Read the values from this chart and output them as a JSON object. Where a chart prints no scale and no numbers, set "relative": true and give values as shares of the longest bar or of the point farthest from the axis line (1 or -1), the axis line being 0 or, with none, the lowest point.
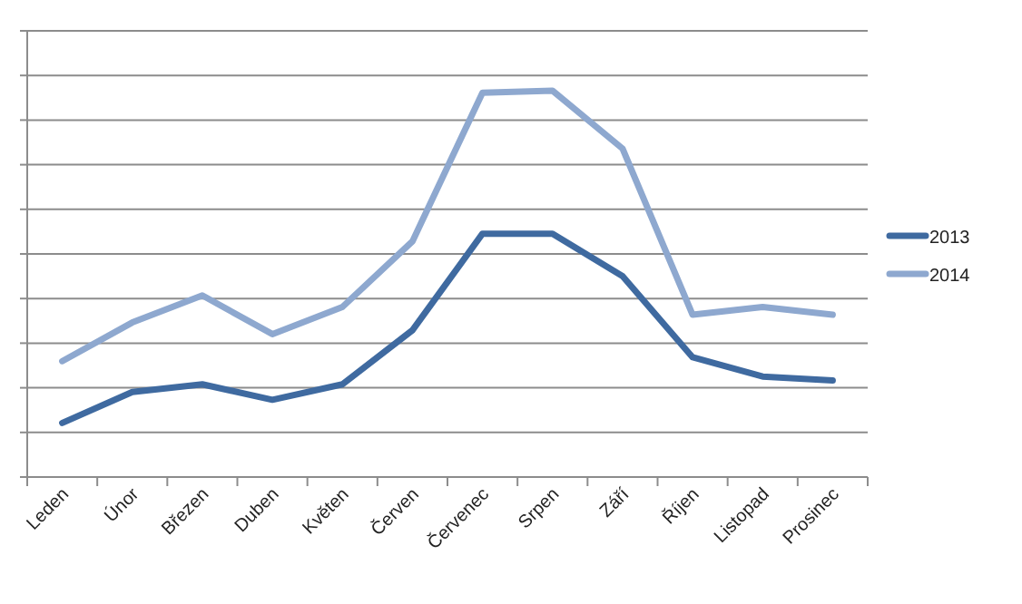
{
  "chart_data": {
    "type": "line",
    "relative": true,
    "grid": "y",
    "legend": "right",
    "line_style": "solid",
    "marker": "none",
    "categories": [
      "Leden",
      "Únor",
      "Březen",
      "Duben",
      "Květen",
      "Červen",
      "Červenec",
      "Srpen",
      "Září",
      "Říjen",
      "Listopad",
      "Prosinec"
    ],
    "series": [
      {
        "name": "2013",
        "color": "#3f6aa0",
        "values": [
          0.14,
          0.22,
          0.24,
          0.2,
          0.24,
          0.38,
          0.63,
          0.63,
          0.52,
          0.31,
          0.26,
          0.25
        ]
      },
      {
        "name": "2014",
        "color": "#8ea8cf",
        "values": [
          0.3,
          0.4,
          0.47,
          0.37,
          0.44,
          0.61,
          0.995,
          1,
          0.85,
          0.42,
          0.44,
          0.42
        ]
      }
    ]
  }
}
